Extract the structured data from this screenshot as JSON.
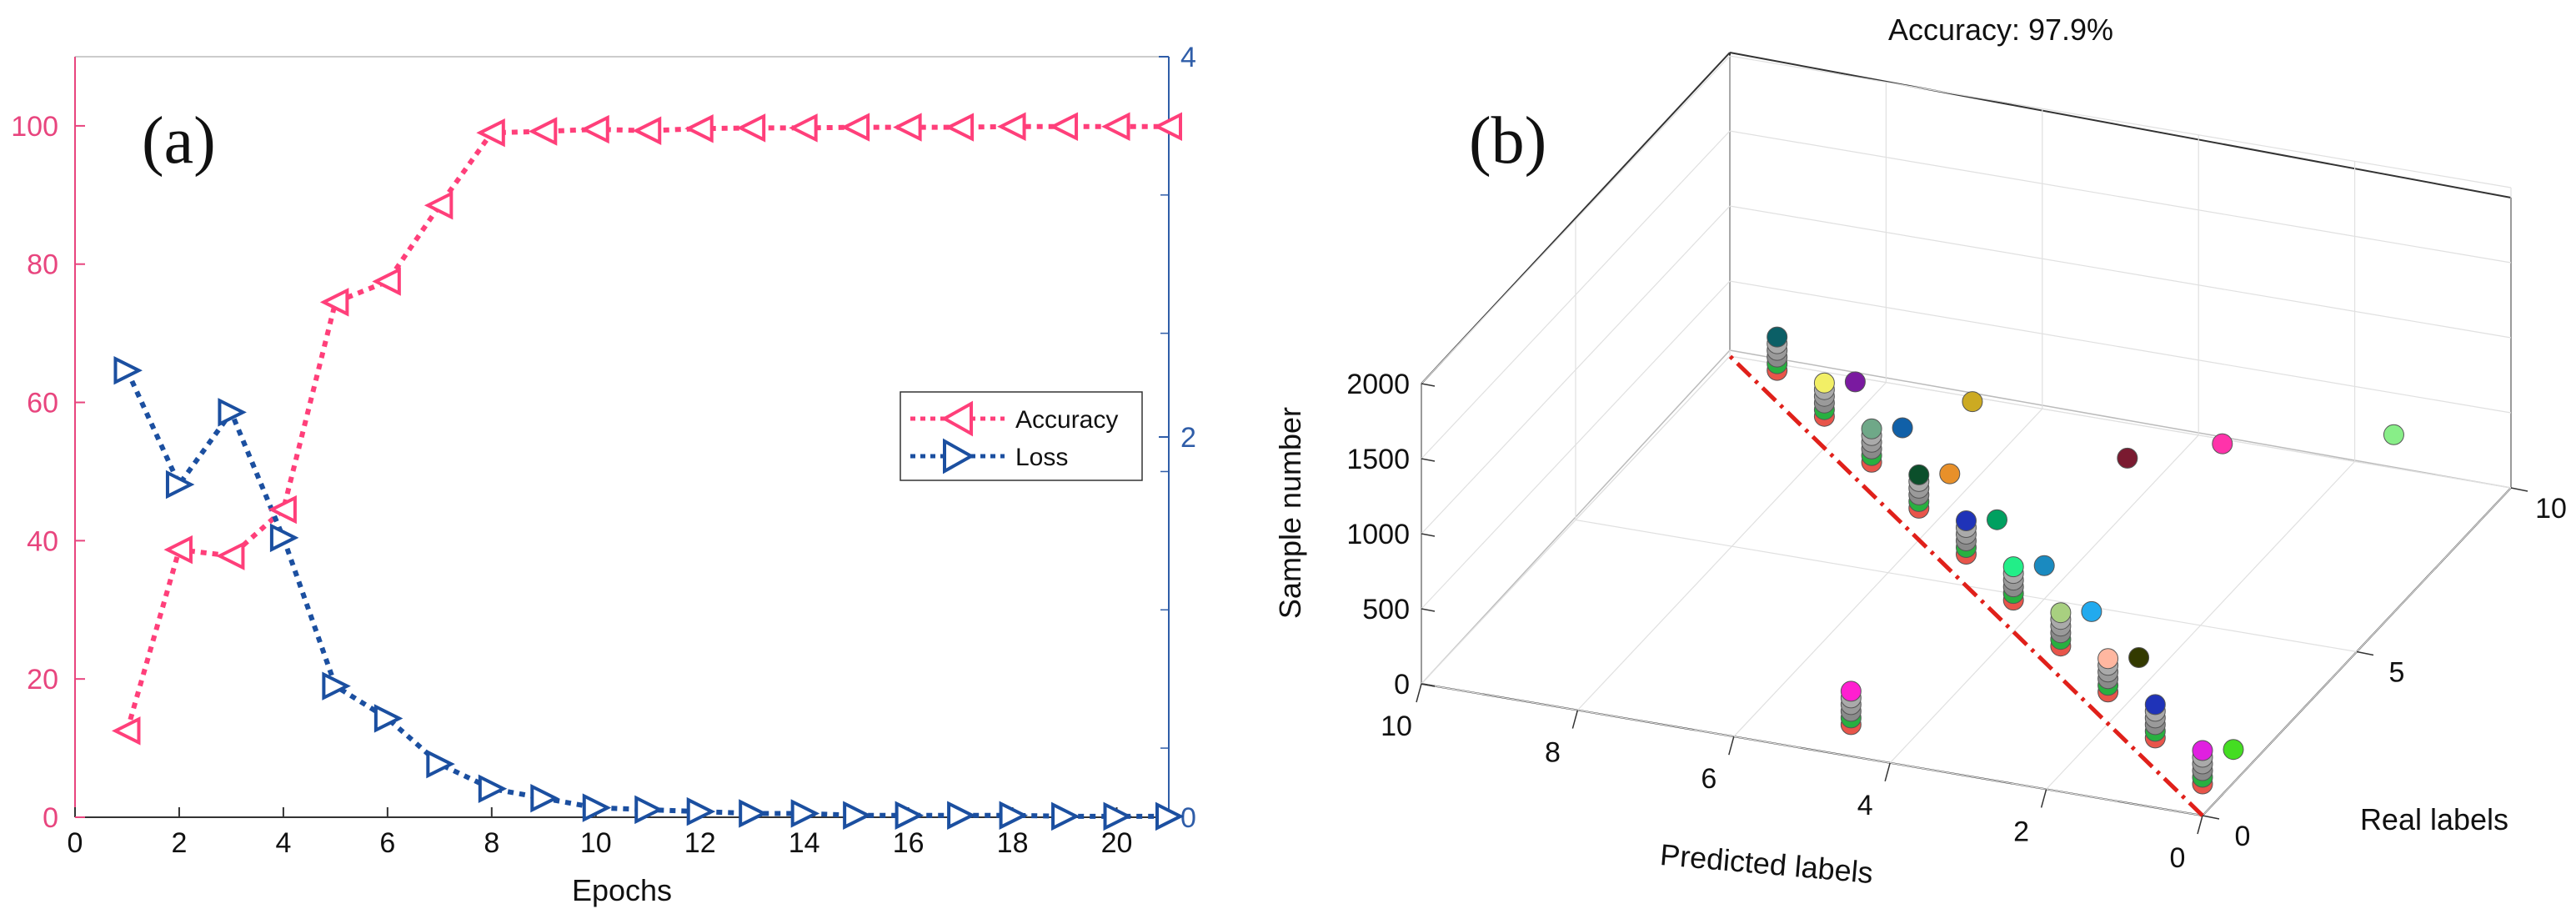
{
  "chart_data": [
    {
      "panel": "(a)",
      "type": "line",
      "xlabel": "Epochs",
      "xlim": [
        0,
        21
      ],
      "xticks": [
        0,
        2,
        4,
        6,
        8,
        10,
        12,
        14,
        16,
        18,
        20
      ],
      "ylim_left": [
        0,
        110
      ],
      "yticks_left": [
        0,
        20,
        40,
        60,
        80,
        100
      ],
      "ylim_right": [
        0,
        4
      ],
      "yticks_right": [
        0,
        2,
        4
      ],
      "colors": {
        "accuracy": "#ff3f7a",
        "loss": "#1b4fa0",
        "left_axis": "#e8457e",
        "right_axis": "#2f5da8"
      },
      "series": [
        {
          "name": "Accuracy",
          "axis": "left",
          "marker": "triangle-left",
          "x": [
            1,
            2,
            3,
            4,
            5,
            6,
            7,
            8,
            9,
            10,
            11,
            12,
            13,
            14,
            15,
            16,
            17,
            18,
            19,
            20,
            21
          ],
          "values": [
            12.5,
            38.7,
            37.8,
            44.5,
            74.5,
            77.5,
            88.5,
            99.0,
            99.2,
            99.5,
            99.3,
            99.6,
            99.7,
            99.7,
            99.8,
            99.8,
            99.8,
            99.9,
            99.9,
            99.9,
            99.9
          ]
        },
        {
          "name": "Loss",
          "axis": "right",
          "marker": "triangle-right",
          "x": [
            1,
            2,
            3,
            4,
            5,
            6,
            7,
            8,
            9,
            10,
            11,
            12,
            13,
            14,
            15,
            16,
            17,
            18,
            19,
            20,
            21
          ],
          "values": [
            2.35,
            1.75,
            2.13,
            1.47,
            0.69,
            0.52,
            0.28,
            0.15,
            0.1,
            0.05,
            0.04,
            0.03,
            0.02,
            0.02,
            0.01,
            0.01,
            0.01,
            0.01,
            0.005,
            0.005,
            0.005
          ]
        }
      ]
    },
    {
      "panel": "(b)",
      "type": "scatter",
      "title": "Accuracy: 97.9%",
      "xlabel": "Predicted labels",
      "ylabel": "Real labels",
      "zlabel": "Sample number",
      "xlim": [
        0,
        10
      ],
      "ylim": [
        0,
        10
      ],
      "zlim": [
        0,
        2000
      ],
      "xticks": [
        0,
        2,
        4,
        6,
        8,
        10
      ],
      "yticks": [
        0,
        5,
        10
      ],
      "zticks": [
        0,
        500,
        1000,
        1500,
        2000
      ],
      "diagonal_color": "#e0201a",
      "stacks": [
        {
          "pred": 0,
          "real": 0,
          "top": "#e020e0"
        },
        {
          "pred": 1,
          "real": 1,
          "top": "#1f33b8"
        },
        {
          "pred": 2,
          "real": 2,
          "top": "#ffb7a0"
        },
        {
          "pred": 3,
          "real": 3,
          "top": "#a8d080"
        },
        {
          "pred": 4,
          "real": 4,
          "top": "#22ee88"
        },
        {
          "pred": 5,
          "real": 5,
          "top": "#1f33b8"
        },
        {
          "pred": 6,
          "real": 6,
          "top": "#0b4f2b"
        },
        {
          "pred": 7,
          "real": 7,
          "top": "#6fa888"
        },
        {
          "pred": 8,
          "real": 8,
          "top": "#f2ef66"
        },
        {
          "pred": 9,
          "real": 9,
          "top": "#0b5f66"
        },
        {
          "pred": 4.5,
          "real": 0,
          "top": "#ff1fd0"
        }
      ],
      "errors": [
        {
          "pred": 0,
          "real": 1,
          "color": "#44dd22"
        },
        {
          "pred": 2,
          "real": 3,
          "color": "#333a00"
        },
        {
          "pred": 3,
          "real": 4,
          "color": "#22aaee"
        },
        {
          "pred": 4,
          "real": 5,
          "color": "#1a8ac0"
        },
        {
          "pred": 5,
          "real": 6,
          "color": "#00a060"
        },
        {
          "pred": 6,
          "real": 7,
          "color": "#e8902a"
        },
        {
          "pred": 7,
          "real": 8,
          "color": "#1060a8"
        },
        {
          "pred": 8,
          "real": 9,
          "color": "#7a1aa0"
        },
        {
          "pred": 6.5,
          "real": 9,
          "color": "#ccaa22"
        },
        {
          "pred": 4.2,
          "real": 8.2,
          "color": "#7a1a30"
        },
        {
          "pred": 3.3,
          "real": 9,
          "color": "#ff33aa"
        },
        {
          "pred": 1.5,
          "real": 10,
          "color": "#88ee88"
        }
      ]
    }
  ]
}
